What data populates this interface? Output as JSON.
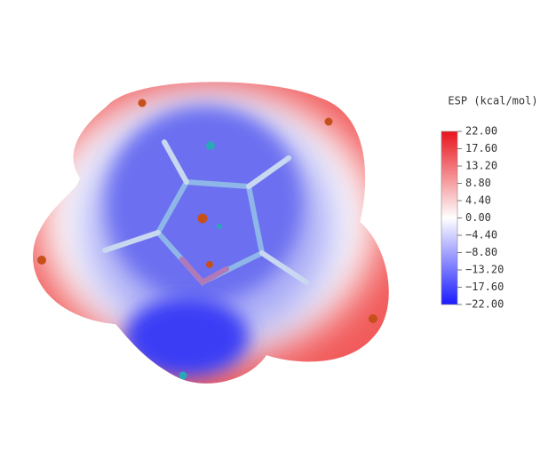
{
  "colorbar": {
    "title": "ESP (kcal/mol)",
    "ticks": [
      "22.00",
      "17.60",
      "13.20",
      "8.80",
      "4.40",
      "0.00",
      "−4.40",
      "−8.80",
      "−13.20",
      "−17.60",
      "−22.00"
    ]
  }
}
